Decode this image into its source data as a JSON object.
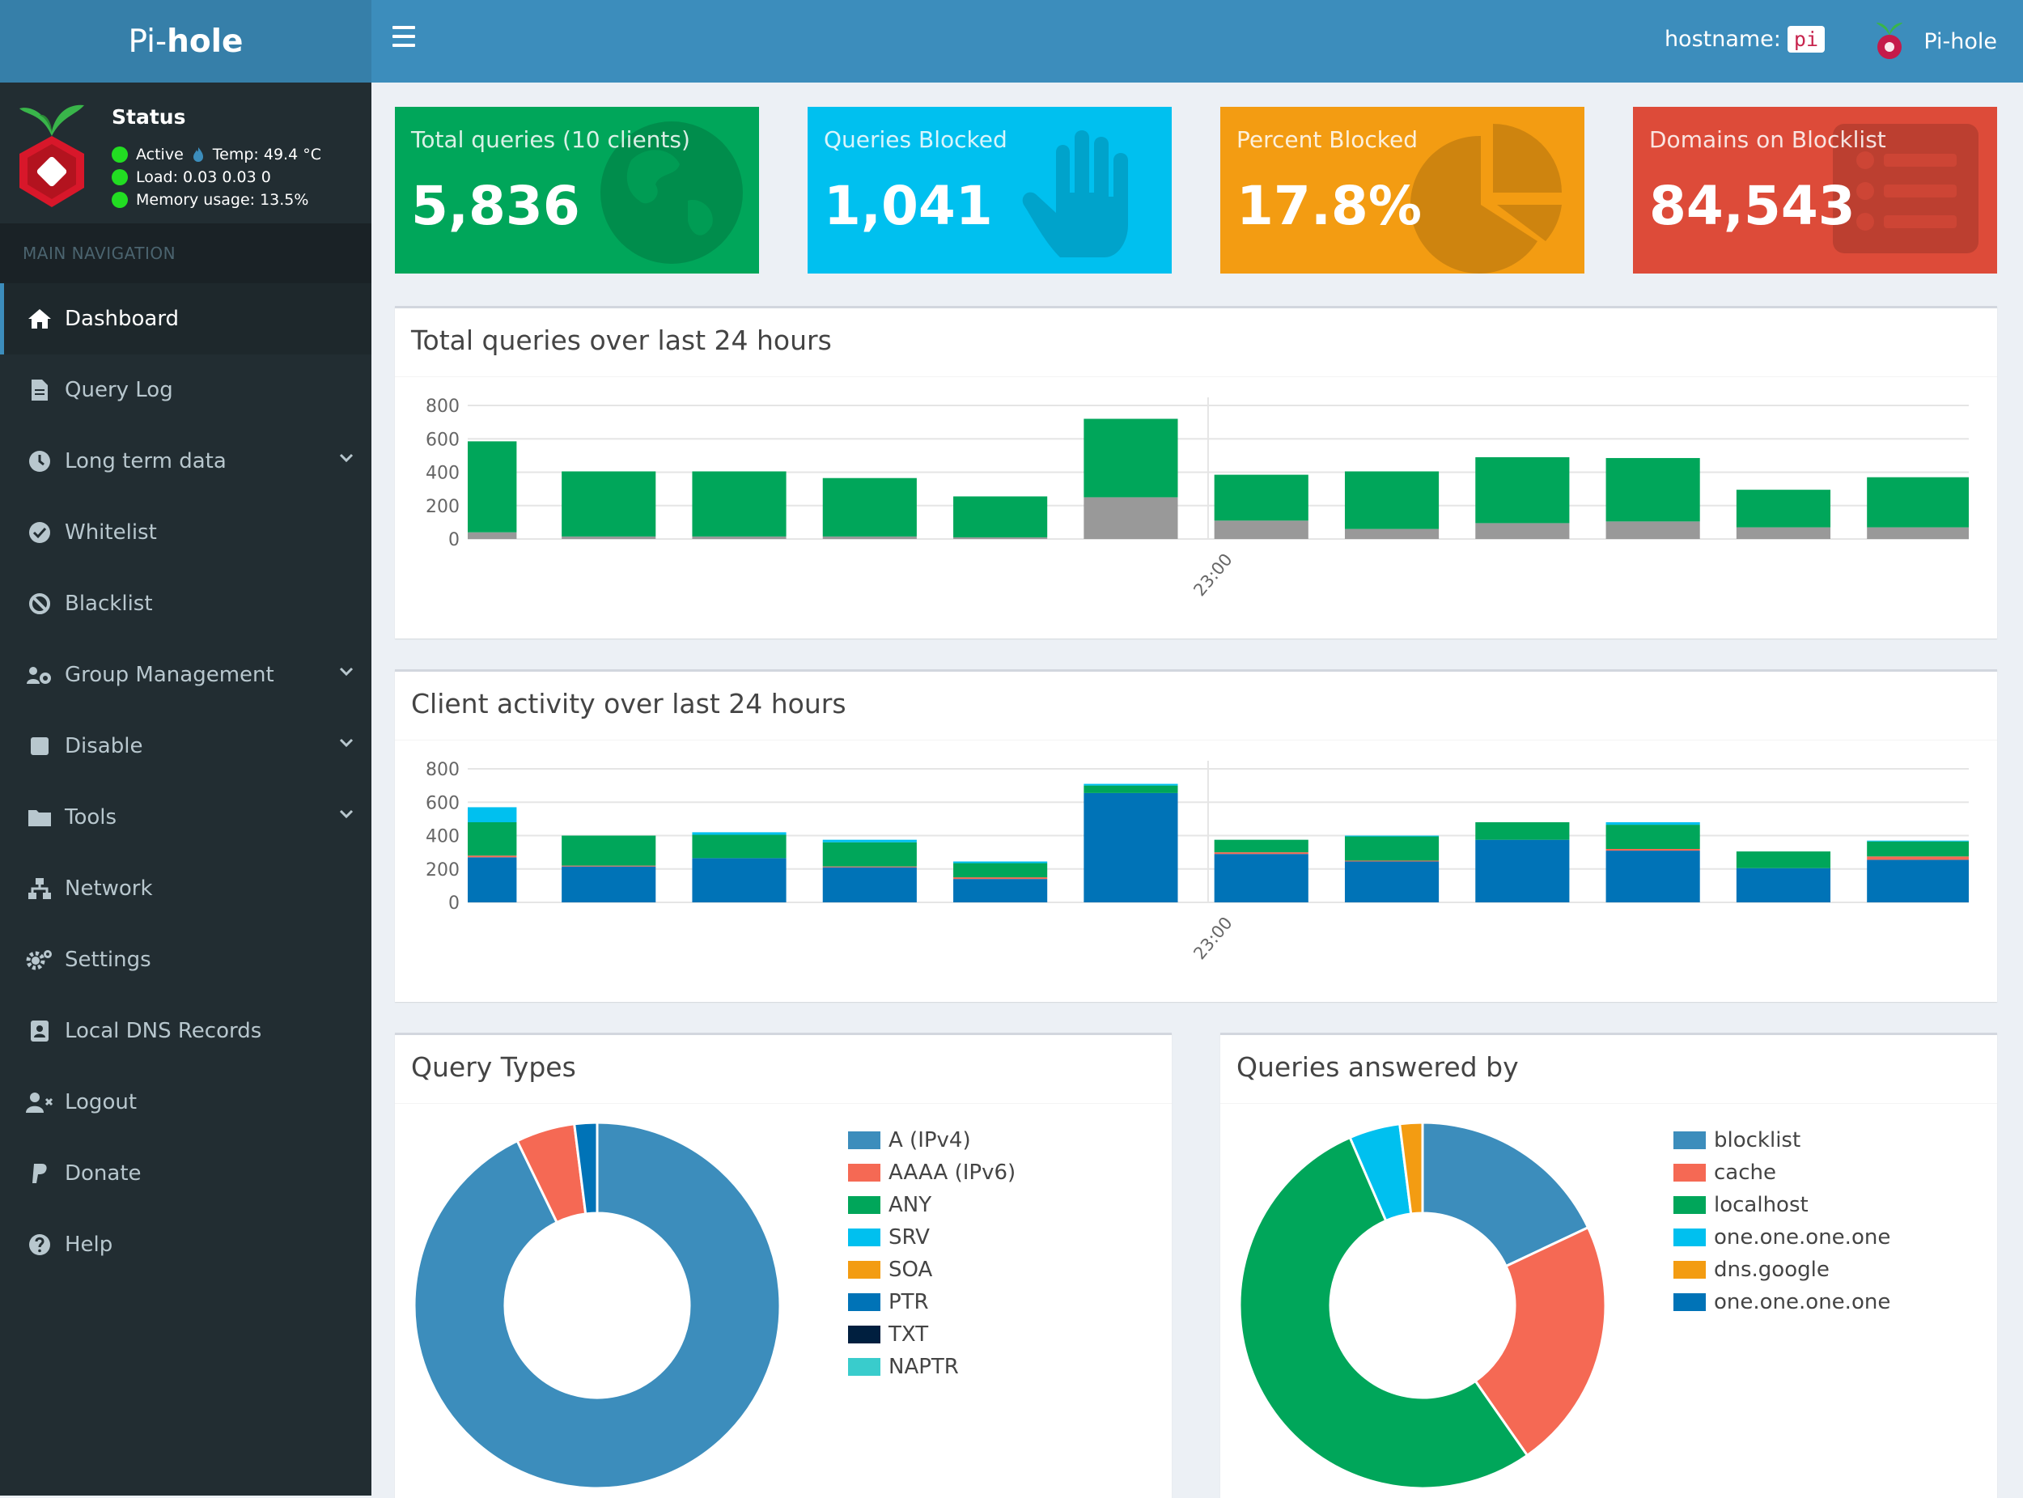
{
  "app": {
    "logo_light": "Pi-",
    "logo_bold": "hole",
    "hostname_label": "hostname:",
    "hostname_value": "pi",
    "user_name": "Pi-hole"
  },
  "status": {
    "title": "Status",
    "active": "Active",
    "temp": "Temp: 49.4 °C",
    "load": "Load:  0.03  0.03  0",
    "memory": "Memory usage:  13.5%"
  },
  "nav": {
    "header": "MAIN NAVIGATION",
    "items": [
      {
        "label": "Dashboard"
      },
      {
        "label": "Query Log"
      },
      {
        "label": "Long term data"
      },
      {
        "label": "Whitelist"
      },
      {
        "label": "Blacklist"
      },
      {
        "label": "Group Management"
      },
      {
        "label": "Disable"
      },
      {
        "label": "Tools"
      },
      {
        "label": "Network"
      },
      {
        "label": "Settings"
      },
      {
        "label": "Local DNS Records"
      },
      {
        "label": "Logout"
      },
      {
        "label": "Donate"
      },
      {
        "label": "Help"
      }
    ]
  },
  "stats": [
    {
      "label": "Total queries (10 clients)",
      "value": "5,836",
      "color": "#00a65a"
    },
    {
      "label": "Queries Blocked",
      "value": "1,041",
      "color": "#00c0ef"
    },
    {
      "label": "Percent Blocked",
      "value": "17.8%",
      "color": "#f39c12"
    },
    {
      "label": "Domains on Blocklist",
      "value": "84,543",
      "color": "#dd4b39"
    }
  ],
  "panels": {
    "queries_title": "Total queries over last 24 hours",
    "clients_title": "Client activity over last 24 hours",
    "types_title": "Query Types",
    "answered_title": "Queries answered by"
  },
  "chart_data": [
    {
      "type": "bar",
      "stacked": true,
      "title": "Total queries over last 24 hours",
      "y_ticks": [
        "800",
        "600",
        "400",
        "200",
        "0"
      ],
      "ylim": [
        0,
        800
      ],
      "x_label": "23:00",
      "series": [
        {
          "color": "#999999",
          "values": [
            40,
            15,
            15,
            15,
            10,
            250,
            110,
            60,
            95,
            105,
            70,
            70
          ]
        },
        {
          "color": "#00a65a",
          "values": [
            545,
            390,
            390,
            350,
            245,
            470,
            275,
            345,
            395,
            380,
            225,
            300
          ]
        }
      ]
    },
    {
      "type": "bar",
      "stacked": true,
      "title": "Client activity over last 24 hours",
      "y_ticks": [
        "800",
        "600",
        "400",
        "200",
        "0"
      ],
      "ylim": [
        0,
        800
      ],
      "x_label": "23:00",
      "series": [
        {
          "color": "#0073b7",
          "values": [
            270,
            215,
            265,
            210,
            140,
            655,
            290,
            245,
            375,
            310,
            205,
            255
          ]
        },
        {
          "color": "#f56954",
          "values": [
            10,
            5,
            0,
            5,
            10,
            0,
            10,
            5,
            0,
            10,
            0,
            20
          ]
        },
        {
          "color": "#00a65a",
          "values": [
            200,
            180,
            140,
            145,
            85,
            45,
            75,
            145,
            105,
            145,
            100,
            90
          ]
        },
        {
          "color": "#00c0ef",
          "values": [
            90,
            0,
            15,
            15,
            10,
            10,
            0,
            5,
            0,
            15,
            0,
            5
          ]
        }
      ]
    },
    {
      "type": "pie",
      "donut": true,
      "title": "Query Types",
      "labels": [
        "A (IPv4)",
        "AAAA (IPv6)",
        "ANY",
        "SRV",
        "SOA",
        "PTR",
        "TXT",
        "NAPTR"
      ],
      "values": [
        92.8,
        5.2,
        0,
        0,
        0,
        2.0,
        0,
        0
      ],
      "colors": [
        "#3c8dbc",
        "#f56954",
        "#00a65a",
        "#00c0ef",
        "#f39c12",
        "#0073b7",
        "#001f3f",
        "#39cccc"
      ]
    },
    {
      "type": "pie",
      "donut": true,
      "title": "Queries answered by",
      "labels": [
        "blocklist",
        "cache",
        "localhost",
        "one.one.one.one",
        "dns.google",
        "one.one.one.one"
      ],
      "values": [
        18.0,
        22.3,
        53.2,
        4.5,
        2.0,
        0
      ],
      "colors": [
        "#3c8dbc",
        "#f56954",
        "#00a65a",
        "#00c0ef",
        "#f39c12",
        "#0073b7"
      ]
    }
  ]
}
